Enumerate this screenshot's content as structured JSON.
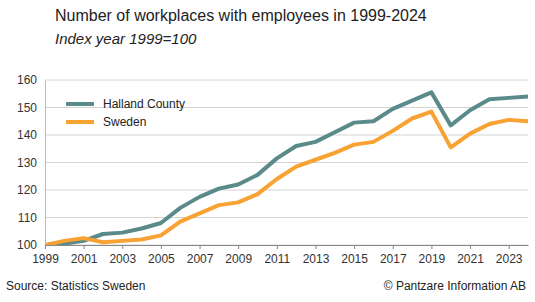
{
  "chart_data": {
    "type": "line",
    "title": "Number of workplaces with employees in 1999-2024",
    "subtitle": "Index year 1999=100",
    "source": "Source: Statistics Sweden",
    "copyright": "© Pantzare Information AB",
    "x": [
      1999,
      2000,
      2001,
      2002,
      2003,
      2004,
      2005,
      2006,
      2007,
      2008,
      2009,
      2010,
      2011,
      2012,
      2013,
      2014,
      2015,
      2016,
      2017,
      2018,
      2019,
      2020,
      2021,
      2022,
      2023,
      2024
    ],
    "series": [
      {
        "name": "Halland County",
        "color": "#5a8a89",
        "values": [
          100,
          100.5,
          101.5,
          104,
          104.5,
          106,
          108,
          113.5,
          117.5,
          120.5,
          122,
          125.5,
          131.5,
          136,
          137.5,
          141,
          144.5,
          145,
          149.5,
          152.5,
          155.5,
          143.5,
          149,
          153,
          153.5,
          154
        ]
      },
      {
        "name": "Sweden",
        "color": "#f7a233",
        "values": [
          100,
          101.5,
          102.5,
          101,
          101.5,
          102,
          103.5,
          108.5,
          111.5,
          114.5,
          115.5,
          118.5,
          124,
          128.5,
          131,
          133.5,
          136.5,
          137.5,
          141.5,
          146,
          148.5,
          135.5,
          140.5,
          144,
          145.5,
          145
        ]
      }
    ],
    "xlim": [
      1999,
      2024
    ],
    "xticks": [
      1999,
      2001,
      2003,
      2005,
      2007,
      2009,
      2011,
      2013,
      2015,
      2017,
      2019,
      2021,
      2023
    ],
    "ylim": [
      100,
      160
    ],
    "yticks": [
      100,
      110,
      120,
      130,
      140,
      150,
      160
    ],
    "grid": true,
    "legend": "upper left"
  }
}
